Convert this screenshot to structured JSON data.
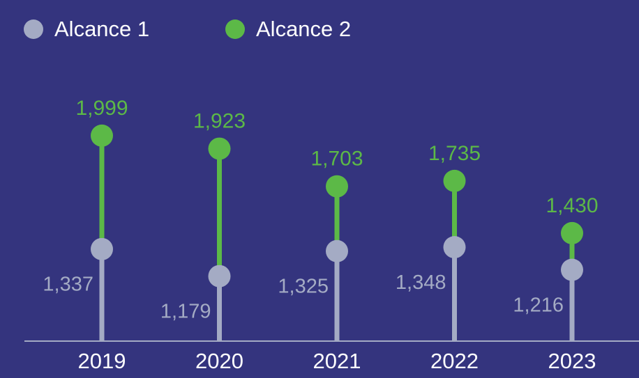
{
  "chart_data": {
    "type": "lollipop",
    "categories": [
      "2019",
      "2020",
      "2021",
      "2022",
      "2023"
    ],
    "series": [
      {
        "name": "Alcance 1",
        "color": "#a4abc4",
        "values": [
          1337,
          1179,
          1325,
          1348,
          1216
        ],
        "value_labels": [
          "1,337",
          "1,179",
          "1,325",
          "1,348",
          "1,216"
        ]
      },
      {
        "name": "Alcance 2",
        "color": "#5cb947",
        "values": [
          1999,
          1923,
          1703,
          1735,
          1430
        ],
        "value_labels": [
          "1,999",
          "1,923",
          "1,703",
          "1,735",
          "1,430"
        ]
      }
    ],
    "ylim": [
      800,
      2100
    ]
  }
}
